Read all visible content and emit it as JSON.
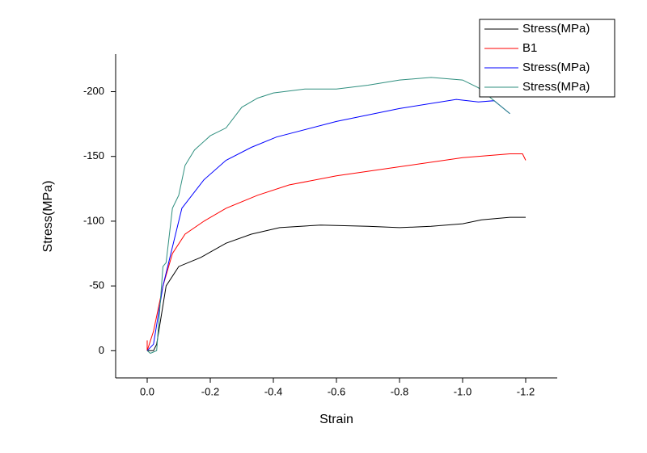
{
  "chart_data": {
    "type": "line",
    "xlabel": "Strain",
    "ylabel": "Stress(MPa)",
    "xlim": [
      0.1,
      -1.3
    ],
    "xticks": [
      {
        "value": 0,
        "label": "0.0"
      },
      -0.2,
      -0.4,
      -0.6,
      -0.8,
      {
        "value": -1,
        "label": "-1.0"
      },
      -1.2
    ],
    "ylim": [
      21,
      -229
    ],
    "yticks": [
      0,
      -50,
      -100,
      -150,
      -200
    ],
    "legend": "upper right",
    "series": [
      {
        "name": "Stress(MPa)",
        "color": "#000000",
        "x": [
          0,
          -0.02,
          -0.03,
          -0.06,
          -0.1,
          -0.17,
          -0.25,
          -0.33,
          -0.42,
          -0.55,
          -0.7,
          -0.8,
          -0.9,
          -1.0,
          -1.06,
          -1.15,
          -1.2
        ],
        "values": [
          0,
          0,
          -5,
          -50,
          -65,
          -72,
          -83,
          -90,
          -95,
          -97,
          -96,
          -95,
          -96,
          -98,
          -101,
          -103,
          -103
        ]
      },
      {
        "name": "B1",
        "color": "#ff0000",
        "x": [
          0,
          0,
          -0.02,
          -0.05,
          -0.08,
          -0.12,
          -0.18,
          -0.25,
          -0.35,
          -0.45,
          -0.6,
          -0.8,
          -1.0,
          -1.15,
          -1.19,
          -1.2
        ],
        "values": [
          -8,
          0,
          -15,
          -50,
          -75,
          -90,
          -100,
          -110,
          -120,
          -128,
          -135,
          -142,
          -149,
          -152,
          -152,
          -147
        ]
      },
      {
        "name": "Stress(MPa)",
        "color": "#0000ff",
        "x": [
          0,
          -0.02,
          -0.05,
          -0.11,
          -0.18,
          -0.25,
          -0.33,
          -0.41,
          -0.6,
          -0.8,
          -0.98,
          -1.05,
          -1.1,
          -1.15
        ],
        "values": [
          0,
          -5,
          -50,
          -110,
          -132,
          -147,
          -157,
          -165,
          -177,
          -187,
          -194,
          -192,
          -193,
          -183
        ]
      },
      {
        "name": "Stress(MPa)",
        "color": "#2f8f7f",
        "x": [
          0,
          -0.01,
          -0.03,
          -0.05,
          -0.06,
          -0.08,
          -0.1,
          -0.12,
          -0.15,
          -0.2,
          -0.25,
          -0.3,
          -0.35,
          -0.4,
          -0.5,
          -0.6,
          -0.7,
          -0.8,
          -0.9,
          -1.0,
          -1.05,
          -1.1,
          -1.15
        ],
        "values": [
          0,
          2,
          0,
          -65,
          -68,
          -110,
          -120,
          -143,
          -155,
          -166,
          -172,
          -188,
          -195,
          -199,
          -202,
          -202,
          -205,
          -209,
          -211,
          -209,
          -203,
          -193,
          -183
        ]
      }
    ]
  }
}
